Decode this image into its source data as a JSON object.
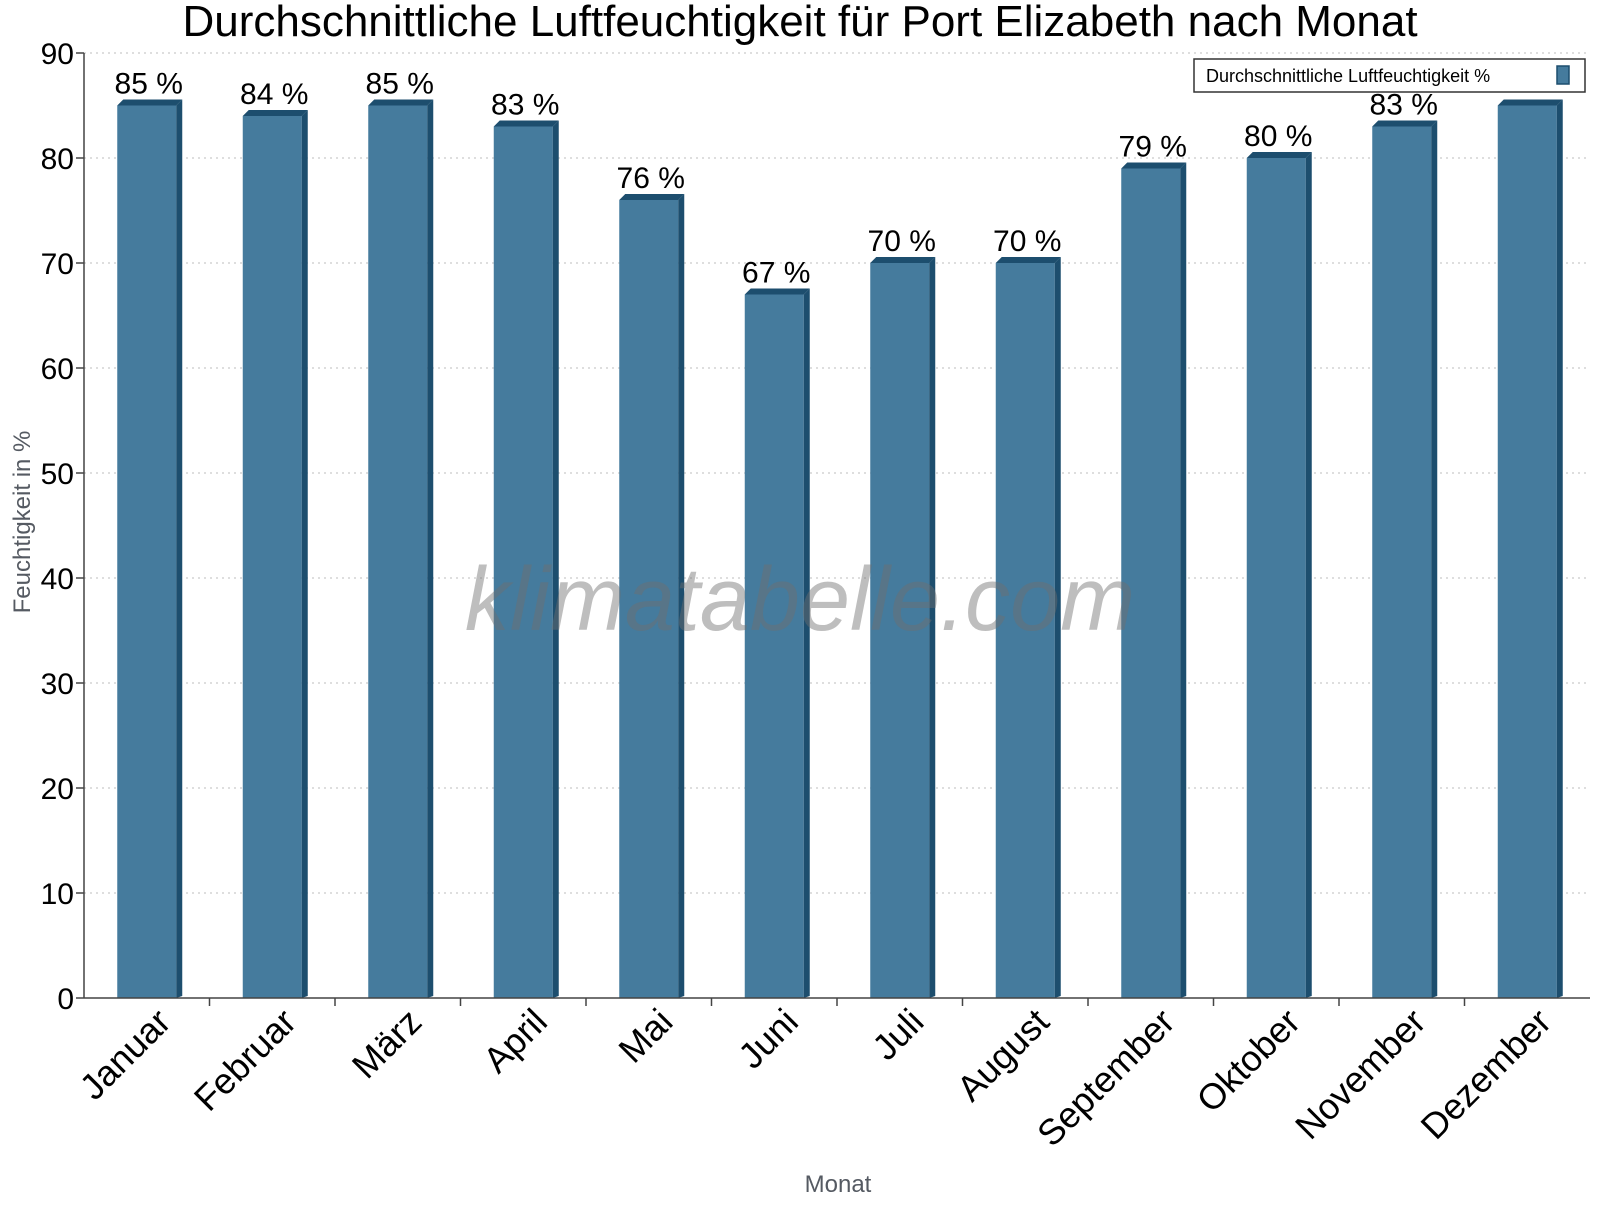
{
  "chart_data": {
    "type": "bar",
    "title": "Durchschnittliche Luftfeuchtigkeit für Port Elizabeth nach Monat",
    "xlabel": "Monat",
    "ylabel": "Feuchtigkeit in %",
    "ylim": [
      0,
      90
    ],
    "yticks": [
      "0",
      "10",
      "20",
      "30",
      "40",
      "50",
      "60",
      "70",
      "80",
      "90"
    ],
    "grid": true,
    "legend": {
      "position": "top-right",
      "label": "Durchschnittliche Luftfeuchtigkeit %"
    },
    "categories": [
      "Januar",
      "Februar",
      "März",
      "April",
      "Mai",
      "Juni",
      "Juli",
      "August",
      "September",
      "Oktober",
      "November",
      "Dezember"
    ],
    "series": [
      {
        "name": "Durchschnittliche Luftfeuchtigkeit %",
        "values": [
          85,
          84,
          85,
          83,
          76,
          67,
          70,
          70,
          79,
          80,
          83,
          85
        ],
        "labels": [
          "85 %",
          "84 %",
          "85 %",
          "83 %",
          "76 %",
          "67 %",
          "70 %",
          "70 %",
          "79 %",
          "80 %",
          "83 %",
          ""
        ]
      }
    ]
  },
  "watermark": "klimatabelle.com",
  "colors": {
    "bar_face": "#457b9d",
    "bar_side": "#1d4e6e",
    "bar_top": "#1d4e6e",
    "axis": "#444444",
    "grid": "#bdbdbd"
  }
}
